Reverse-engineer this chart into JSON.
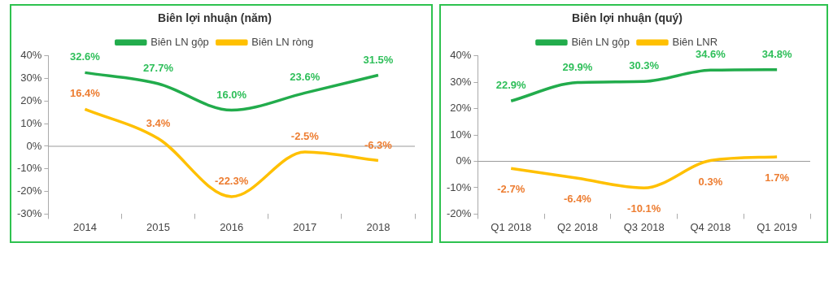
{
  "chart_data": [
    {
      "type": "line",
      "title": "Biên lợi nhuận (năm)",
      "categories": [
        "2014",
        "2015",
        "2016",
        "2017",
        "2018"
      ],
      "series": [
        {
          "name": "Biên LN gộp",
          "color": "#22ac4c",
          "values": [
            32.6,
            27.7,
            16.0,
            23.6,
            31.5
          ],
          "value_labels": [
            "32.6%",
            "27.7%",
            "16.0%",
            "23.6%",
            "31.5%"
          ]
        },
        {
          "name": "Biên LN ròng",
          "color": "#ffc000",
          "values": [
            16.4,
            3.4,
            -22.3,
            -2.5,
            -6.3
          ],
          "value_labels": [
            "16.4%",
            "3.4%",
            "-22.3%",
            "-2.5%",
            "-6.3%"
          ]
        }
      ],
      "ylim": [
        -30,
        40
      ],
      "yticks": [
        {
          "value": -30,
          "label": "-30%"
        },
        {
          "value": -20,
          "label": "-20%"
        },
        {
          "value": -10,
          "label": "-10%"
        },
        {
          "value": 0,
          "label": "0%"
        },
        {
          "value": 10,
          "label": "10%"
        },
        {
          "value": 20,
          "label": "20%"
        },
        {
          "value": 30,
          "label": "30%"
        },
        {
          "value": 40,
          "label": "40%"
        }
      ],
      "ref_lines": [
        {
          "axis": "y",
          "value": 0
        }
      ],
      "grid": false,
      "legend": "top",
      "marker": "none",
      "line_style": "solid"
    },
    {
      "type": "line",
      "title": "Biên lợi nhuận (quý)",
      "categories": [
        "Q1 2018",
        "Q2 2018",
        "Q3 2018",
        "Q4 2018",
        "Q1 2019"
      ],
      "series": [
        {
          "name": "Biên LN gộp",
          "color": "#22ac4c",
          "values": [
            22.9,
            29.9,
            30.3,
            34.6,
            34.8
          ],
          "value_labels": [
            "22.9%",
            "29.9%",
            "30.3%",
            "34.6%",
            "34.8%"
          ]
        },
        {
          "name": "Biên LNR",
          "color": "#ffc000",
          "values": [
            -2.7,
            -6.4,
            -10.1,
            0.3,
            1.7
          ],
          "value_labels": [
            "-2.7%",
            "-6.4%",
            "-10.1%",
            "0.3%",
            "1.7%"
          ]
        }
      ],
      "ylim": [
        -20,
        40
      ],
      "yticks": [
        {
          "value": -20,
          "label": "-20%"
        },
        {
          "value": -10,
          "label": "-10%"
        },
        {
          "value": 0,
          "label": "0%"
        },
        {
          "value": 10,
          "label": "10%"
        },
        {
          "value": 20,
          "label": "20%"
        },
        {
          "value": 30,
          "label": "30%"
        },
        {
          "value": 40,
          "label": "40%"
        }
      ],
      "ref_lines": [
        {
          "axis": "y",
          "value": 0
        }
      ],
      "grid": false,
      "legend": "top",
      "marker": "none",
      "line_style": "solid"
    }
  ]
}
